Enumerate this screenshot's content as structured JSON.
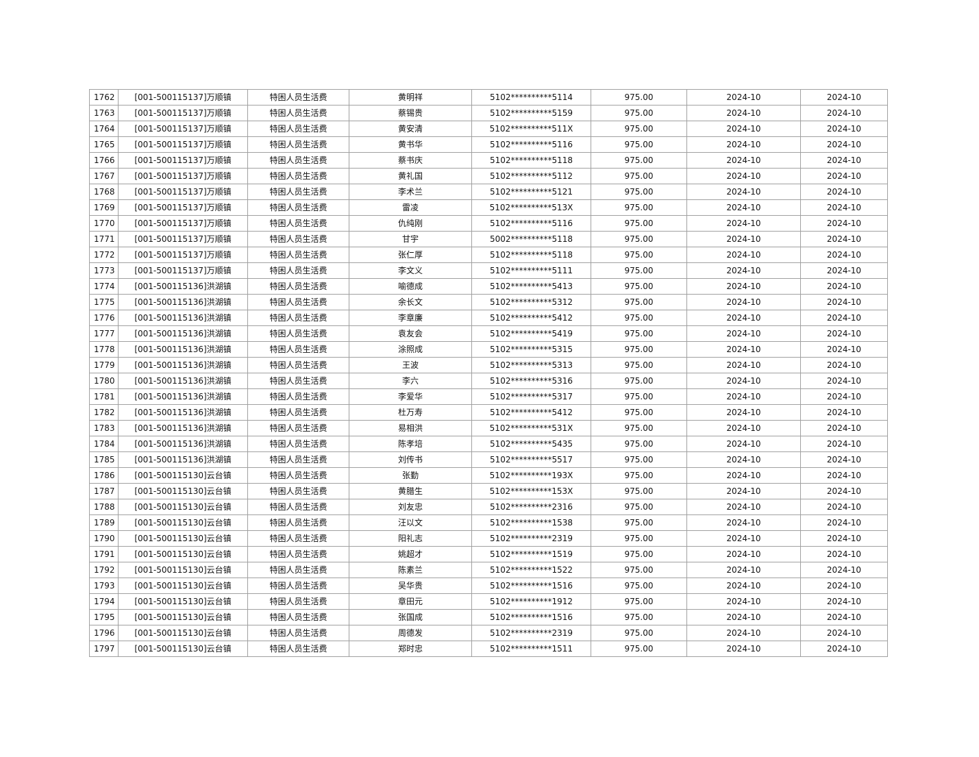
{
  "table": {
    "rows": [
      [
        "1762",
        "[001-500115137]万顺镇",
        "特困人员生活费",
        "黄明祥",
        "5102**********5114",
        "975.00",
        "2024-10",
        "2024-10"
      ],
      [
        "1763",
        "[001-500115137]万顺镇",
        "特困人员生活费",
        "蔡锡贵",
        "5102**********5159",
        "975.00",
        "2024-10",
        "2024-10"
      ],
      [
        "1764",
        "[001-500115137]万顺镇",
        "特困人员生活费",
        "黄安清",
        "5102**********511X",
        "975.00",
        "2024-10",
        "2024-10"
      ],
      [
        "1765",
        "[001-500115137]万顺镇",
        "特困人员生活费",
        "黄书华",
        "5102**********5116",
        "975.00",
        "2024-10",
        "2024-10"
      ],
      [
        "1766",
        "[001-500115137]万顺镇",
        "特困人员生活费",
        "蔡书庆",
        "5102**********5118",
        "975.00",
        "2024-10",
        "2024-10"
      ],
      [
        "1767",
        "[001-500115137]万顺镇",
        "特困人员生活费",
        "黄礼国",
        "5102**********5112",
        "975.00",
        "2024-10",
        "2024-10"
      ],
      [
        "1768",
        "[001-500115137]万顺镇",
        "特困人员生活费",
        "李术兰",
        "5102**********5121",
        "975.00",
        "2024-10",
        "2024-10"
      ],
      [
        "1769",
        "[001-500115137]万顺镇",
        "特困人员生活费",
        "雷凌",
        "5102**********513X",
        "975.00",
        "2024-10",
        "2024-10"
      ],
      [
        "1770",
        "[001-500115137]万顺镇",
        "特困人员生活费",
        "仇纯刚",
        "5102**********5116",
        "975.00",
        "2024-10",
        "2024-10"
      ],
      [
        "1771",
        "[001-500115137]万顺镇",
        "特困人员生活费",
        "甘宇",
        "5002**********5118",
        "975.00",
        "2024-10",
        "2024-10"
      ],
      [
        "1772",
        "[001-500115137]万顺镇",
        "特困人员生活费",
        "张仁厚",
        "5102**********5118",
        "975.00",
        "2024-10",
        "2024-10"
      ],
      [
        "1773",
        "[001-500115137]万顺镇",
        "特困人员生活费",
        "李文义",
        "5102**********5111",
        "975.00",
        "2024-10",
        "2024-10"
      ],
      [
        "1774",
        "[001-500115136]洪湖镇",
        "特困人员生活费",
        "喻德成",
        "5102**********5413",
        "975.00",
        "2024-10",
        "2024-10"
      ],
      [
        "1775",
        "[001-500115136]洪湖镇",
        "特困人员生活费",
        "余长文",
        "5102**********5312",
        "975.00",
        "2024-10",
        "2024-10"
      ],
      [
        "1776",
        "[001-500115136]洪湖镇",
        "特困人员生活费",
        "李章廉",
        "5102**********5412",
        "975.00",
        "2024-10",
        "2024-10"
      ],
      [
        "1777",
        "[001-500115136]洪湖镇",
        "特困人员生活费",
        "袁友会",
        "5102**********5419",
        "975.00",
        "2024-10",
        "2024-10"
      ],
      [
        "1778",
        "[001-500115136]洪湖镇",
        "特困人员生活费",
        "涂照成",
        "5102**********5315",
        "975.00",
        "2024-10",
        "2024-10"
      ],
      [
        "1779",
        "[001-500115136]洪湖镇",
        "特困人员生活费",
        "王波",
        "5102**********5313",
        "975.00",
        "2024-10",
        "2024-10"
      ],
      [
        "1780",
        "[001-500115136]洪湖镇",
        "特困人员生活费",
        "李六",
        "5102**********5316",
        "975.00",
        "2024-10",
        "2024-10"
      ],
      [
        "1781",
        "[001-500115136]洪湖镇",
        "特困人员生活费",
        "李爱华",
        "5102**********5317",
        "975.00",
        "2024-10",
        "2024-10"
      ],
      [
        "1782",
        "[001-500115136]洪湖镇",
        "特困人员生活费",
        "杜万寿",
        "5102**********5412",
        "975.00",
        "2024-10",
        "2024-10"
      ],
      [
        "1783",
        "[001-500115136]洪湖镇",
        "特困人员生活费",
        "易相洪",
        "5102**********531X",
        "975.00",
        "2024-10",
        "2024-10"
      ],
      [
        "1784",
        "[001-500115136]洪湖镇",
        "特困人员生活费",
        "陈孝培",
        "5102**********5435",
        "975.00",
        "2024-10",
        "2024-10"
      ],
      [
        "1785",
        "[001-500115136]洪湖镇",
        "特困人员生活费",
        "刘传书",
        "5102**********5517",
        "975.00",
        "2024-10",
        "2024-10"
      ],
      [
        "1786",
        "[001-500115130]云台镇",
        "特困人员生活费",
        "张勤",
        "5102**********193X",
        "975.00",
        "2024-10",
        "2024-10"
      ],
      [
        "1787",
        "[001-500115130]云台镇",
        "特困人员生活费",
        "黄腊生",
        "5102**********153X",
        "975.00",
        "2024-10",
        "2024-10"
      ],
      [
        "1788",
        "[001-500115130]云台镇",
        "特困人员生活费",
        "刘友忠",
        "5102**********2316",
        "975.00",
        "2024-10",
        "2024-10"
      ],
      [
        "1789",
        "[001-500115130]云台镇",
        "特困人员生活费",
        "汪以文",
        "5102**********1538",
        "975.00",
        "2024-10",
        "2024-10"
      ],
      [
        "1790",
        "[001-500115130]云台镇",
        "特困人员生活费",
        "阳礼志",
        "5102**********2319",
        "975.00",
        "2024-10",
        "2024-10"
      ],
      [
        "1791",
        "[001-500115130]云台镇",
        "特困人员生活费",
        "姚超才",
        "5102**********1519",
        "975.00",
        "2024-10",
        "2024-10"
      ],
      [
        "1792",
        "[001-500115130]云台镇",
        "特困人员生活费",
        "陈素兰",
        "5102**********1522",
        "975.00",
        "2024-10",
        "2024-10"
      ],
      [
        "1793",
        "[001-500115130]云台镇",
        "特困人员生活费",
        "吴华贵",
        "5102**********1516",
        "975.00",
        "2024-10",
        "2024-10"
      ],
      [
        "1794",
        "[001-500115130]云台镇",
        "特困人员生活费",
        "章田元",
        "5102**********1912",
        "975.00",
        "2024-10",
        "2024-10"
      ],
      [
        "1795",
        "[001-500115130]云台镇",
        "特困人员生活费",
        "张国成",
        "5102**********1516",
        "975.00",
        "2024-10",
        "2024-10"
      ],
      [
        "1796",
        "[001-500115130]云台镇",
        "特困人员生活费",
        "周德发",
        "5102**********2319",
        "975.00",
        "2024-10",
        "2024-10"
      ],
      [
        "1797",
        "[001-500115130]云台镇",
        "特困人员生活费",
        "郑时忠",
        "5102**********1511",
        "975.00",
        "2024-10",
        "2024-10"
      ]
    ]
  }
}
